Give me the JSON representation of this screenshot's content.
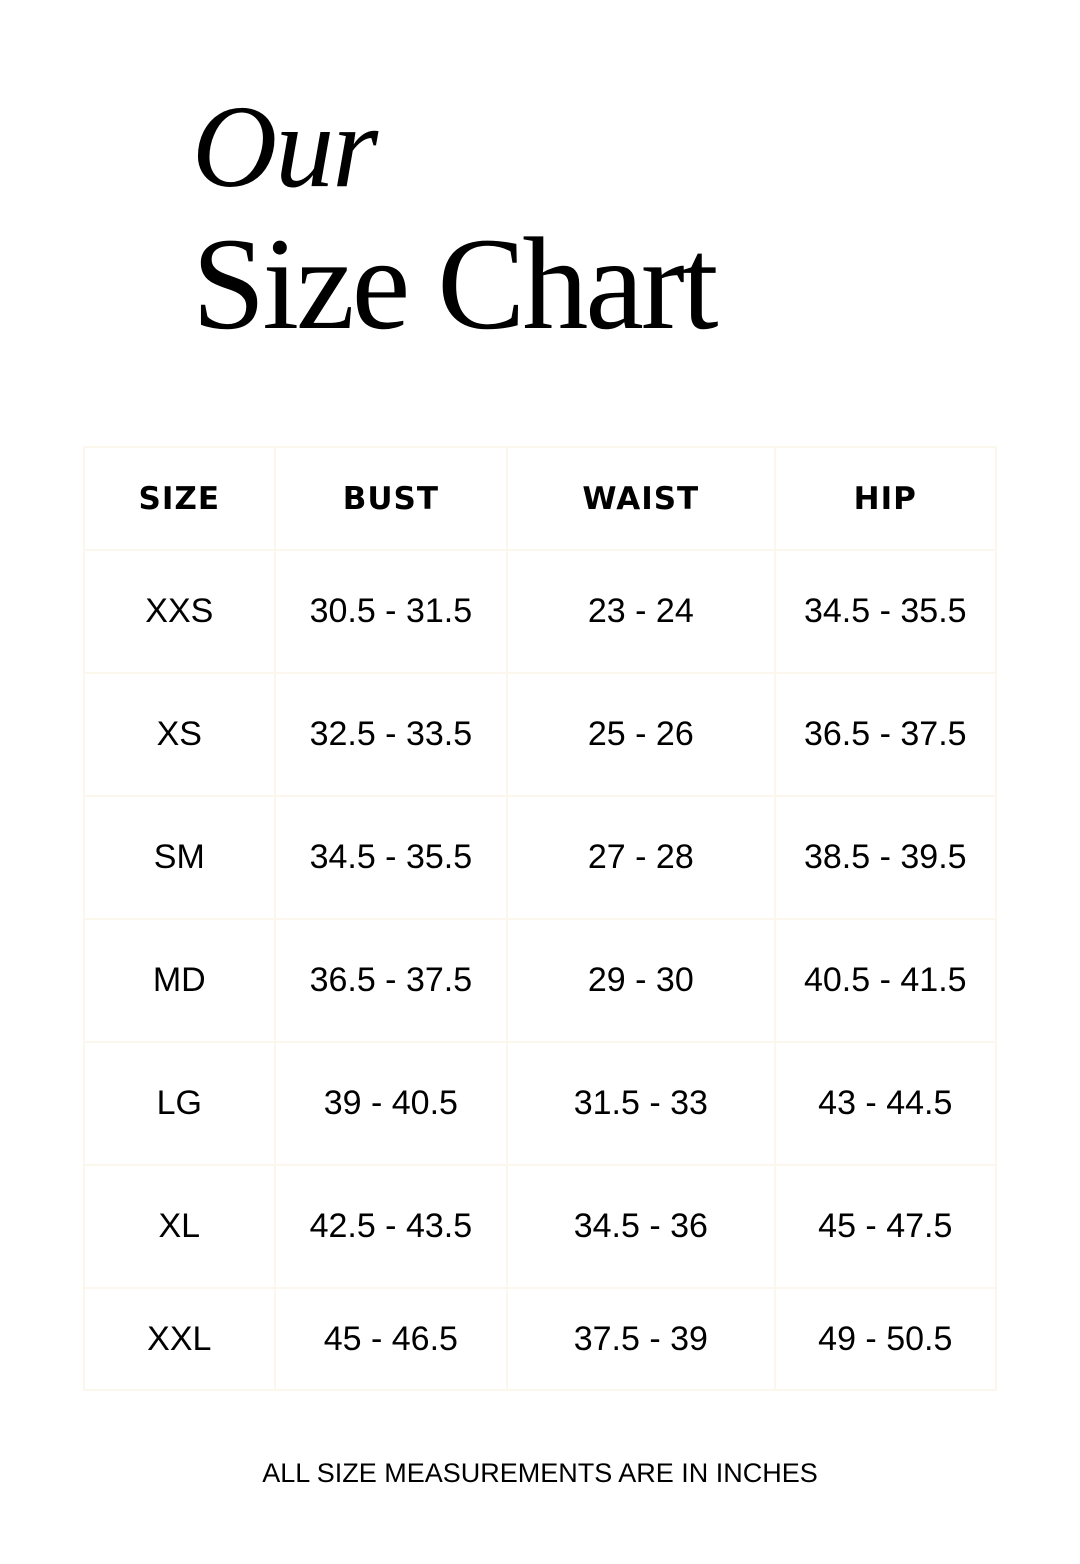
{
  "title": {
    "line1": "Our",
    "line2": "Size Chart"
  },
  "table": {
    "headers": [
      "SIZE",
      "BUST",
      "WAIST",
      "HIP"
    ],
    "rows": [
      [
        "XXS",
        "30.5 - 31.5",
        "23 - 24",
        "34.5 - 35.5"
      ],
      [
        "XS",
        "32.5 - 33.5",
        "25 - 26",
        "36.5 - 37.5"
      ],
      [
        "SM",
        "34.5 - 35.5",
        "27 - 28",
        "38.5 - 39.5"
      ],
      [
        "MD",
        "36.5 - 37.5",
        "29 - 30",
        "40.5 - 41.5"
      ],
      [
        "LG",
        "39 - 40.5",
        "31.5 - 33",
        "43 - 44.5"
      ],
      [
        "XL",
        "42.5 - 43.5",
        "34.5 - 36",
        "45 - 47.5"
      ],
      [
        "XXL",
        "45 - 46.5",
        "37.5 - 39",
        "49 - 50.5"
      ]
    ]
  },
  "footer": {
    "note": "ALL SIZE MEASUREMENTS ARE IN INCHES"
  }
}
